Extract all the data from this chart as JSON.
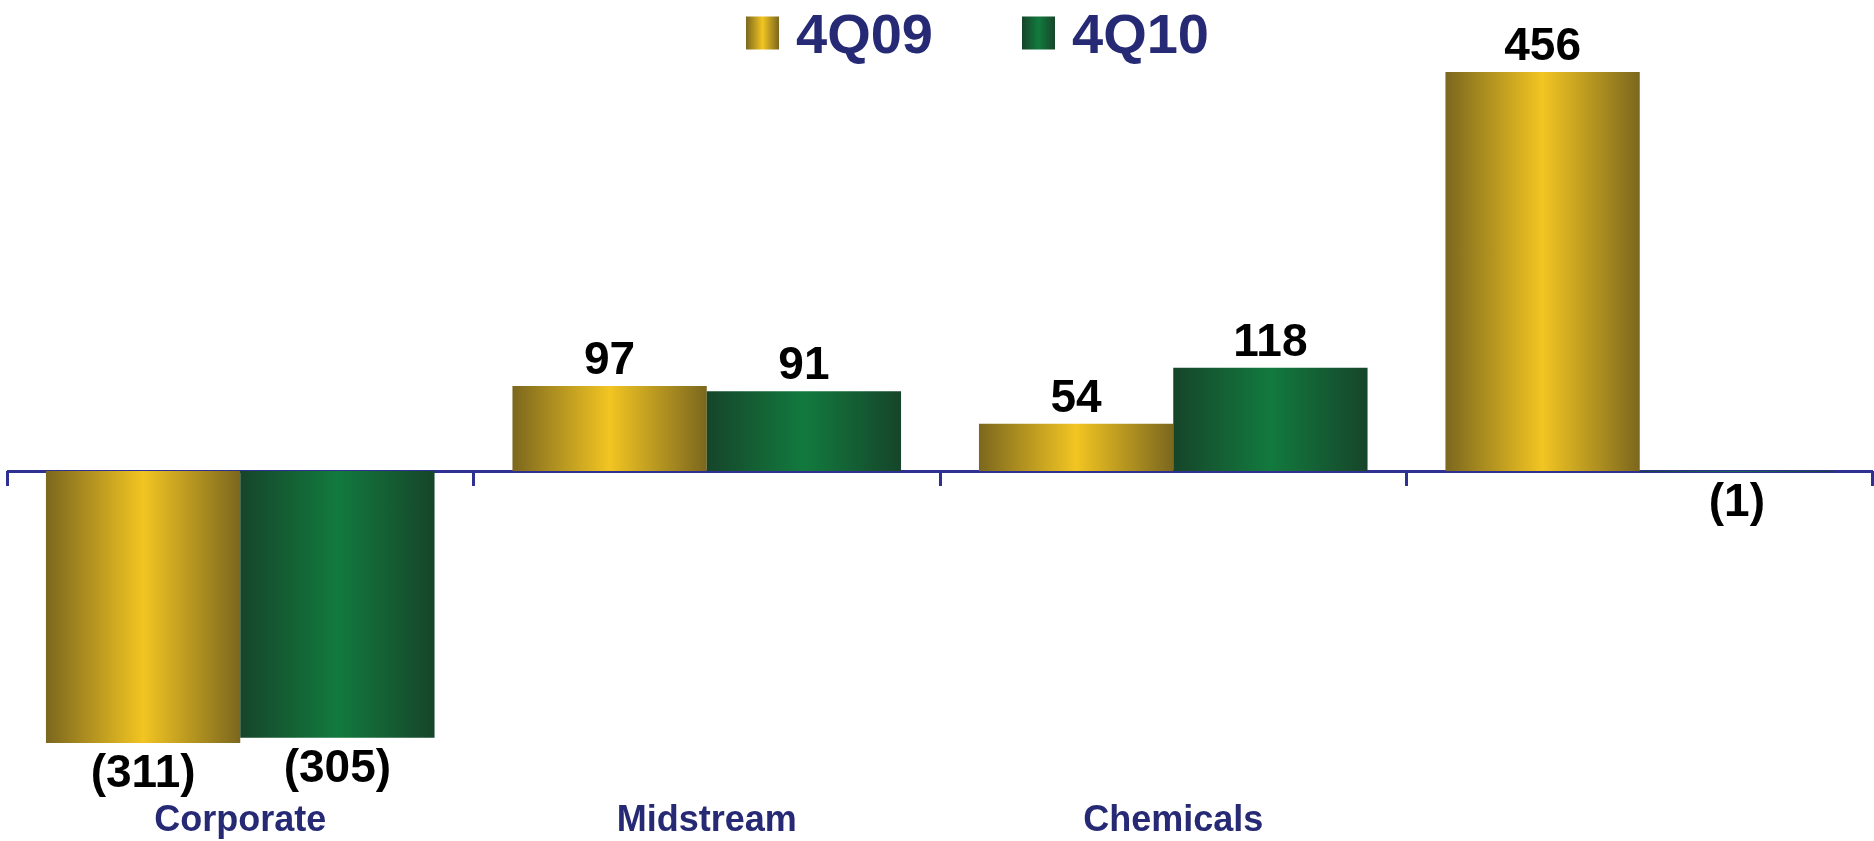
{
  "chart_data": {
    "type": "bar",
    "categories": [
      "Corporate",
      "Midstream",
      "Chemicals",
      null
    ],
    "series": [
      {
        "name": "4Q09",
        "color": "#f2c522",
        "values": [
          -311,
          97,
          54,
          456
        ],
        "value_labels": [
          "(311)",
          "97",
          "54",
          "456"
        ]
      },
      {
        "name": "4Q10",
        "color": "#127a3e",
        "values": [
          -305,
          91,
          118,
          -1
        ],
        "value_labels": [
          "(305)",
          "91",
          "118",
          "(1)"
        ]
      }
    ],
    "ref_lines": [
      {
        "axis": "y",
        "value": 0,
        "color": "#2e3192"
      }
    ],
    "legend": "top"
  }
}
